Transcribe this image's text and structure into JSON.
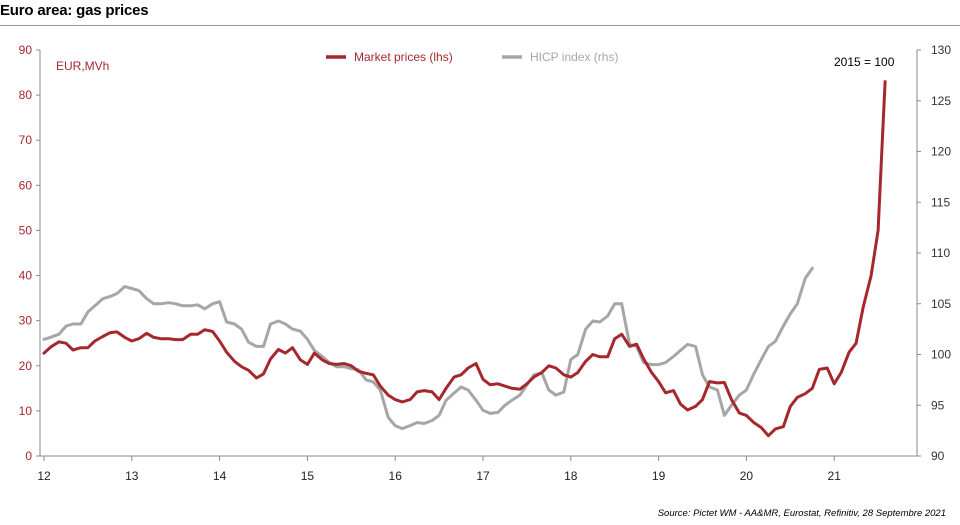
{
  "header": {
    "title": "Euro area: gas prices"
  },
  "footer": {
    "source": "Source: Pictet WM - AA&MR, Eurostat, Refinitiv, 28 Septembre 2021"
  },
  "colors": {
    "market": "#a5282e",
    "hicp": "#a6a6a6",
    "left_axis": "#a5282e",
    "right_axis": "#333333"
  },
  "chart_data": {
    "type": "line",
    "title": "Euro area: gas prices",
    "ylabel_left": "EUR,MVh",
    "annotation": "2015 = 100",
    "legend_position": "top-center",
    "grid": false,
    "xlim": [
      12,
      22
    ],
    "x_ticks": [
      12,
      13,
      14,
      15,
      16,
      17,
      18,
      19,
      20,
      21
    ],
    "ylim_left": [
      0,
      90
    ],
    "ylim_right": [
      90,
      130
    ],
    "y_ticks_left": [
      0,
      10,
      20,
      30,
      40,
      50,
      60,
      70,
      80,
      90
    ],
    "y_ticks_right": [
      90,
      95,
      100,
      105,
      110,
      115,
      120,
      125,
      130
    ],
    "series": [
      {
        "name": "Market prices (lhs)",
        "axis": "left",
        "points": [
          [
            12.0,
            22.8
          ],
          [
            12.08,
            24.2
          ],
          [
            12.17,
            25.3
          ],
          [
            12.25,
            25.0
          ],
          [
            12.33,
            23.5
          ],
          [
            12.42,
            24.0
          ],
          [
            12.5,
            24.0
          ],
          [
            12.58,
            25.5
          ],
          [
            12.67,
            26.5
          ],
          [
            12.75,
            27.3
          ],
          [
            12.83,
            27.5
          ],
          [
            12.92,
            26.3
          ],
          [
            13.0,
            25.5
          ],
          [
            13.08,
            26.0
          ],
          [
            13.17,
            27.2
          ],
          [
            13.25,
            26.3
          ],
          [
            13.33,
            26.0
          ],
          [
            13.42,
            26.0
          ],
          [
            13.5,
            25.8
          ],
          [
            13.58,
            25.8
          ],
          [
            13.67,
            27.0
          ],
          [
            13.75,
            27.0
          ],
          [
            13.83,
            28.0
          ],
          [
            13.92,
            27.6
          ],
          [
            14.0,
            25.5
          ],
          [
            14.08,
            23.0
          ],
          [
            14.17,
            21.0
          ],
          [
            14.25,
            19.8
          ],
          [
            14.33,
            19.0
          ],
          [
            14.42,
            17.3
          ],
          [
            14.5,
            18.2
          ],
          [
            14.58,
            21.5
          ],
          [
            14.67,
            23.6
          ],
          [
            14.75,
            22.8
          ],
          [
            14.83,
            24.0
          ],
          [
            14.92,
            21.3
          ],
          [
            15.0,
            20.3
          ],
          [
            15.08,
            22.8
          ],
          [
            15.17,
            21.3
          ],
          [
            15.25,
            20.5
          ],
          [
            15.33,
            20.3
          ],
          [
            15.42,
            20.5
          ],
          [
            15.5,
            20.0
          ],
          [
            15.58,
            18.8
          ],
          [
            15.67,
            18.3
          ],
          [
            15.75,
            18.0
          ],
          [
            15.83,
            15.5
          ],
          [
            15.92,
            13.5
          ],
          [
            16.0,
            12.5
          ],
          [
            16.08,
            12.0
          ],
          [
            16.17,
            12.5
          ],
          [
            16.25,
            14.2
          ],
          [
            16.33,
            14.5
          ],
          [
            16.42,
            14.2
          ],
          [
            16.5,
            12.5
          ],
          [
            16.58,
            15.0
          ],
          [
            16.67,
            17.5
          ],
          [
            16.75,
            18.0
          ],
          [
            16.83,
            19.5
          ],
          [
            16.92,
            20.5
          ],
          [
            17.0,
            17.0
          ],
          [
            17.08,
            15.8
          ],
          [
            17.17,
            16.0
          ],
          [
            17.25,
            15.5
          ],
          [
            17.33,
            15.0
          ],
          [
            17.42,
            14.8
          ],
          [
            17.5,
            16.0
          ],
          [
            17.58,
            17.5
          ],
          [
            17.67,
            18.5
          ],
          [
            17.75,
            20.0
          ],
          [
            17.83,
            19.5
          ],
          [
            17.92,
            18.0
          ],
          [
            18.0,
            17.5
          ],
          [
            18.08,
            18.5
          ],
          [
            18.17,
            21.0
          ],
          [
            18.25,
            22.5
          ],
          [
            18.33,
            22.0
          ],
          [
            18.42,
            22.0
          ],
          [
            18.5,
            26.0
          ],
          [
            18.58,
            27.0
          ],
          [
            18.67,
            24.3
          ],
          [
            18.75,
            24.8
          ],
          [
            18.83,
            21.5
          ],
          [
            18.92,
            18.5
          ],
          [
            19.0,
            16.5
          ],
          [
            19.08,
            14.0
          ],
          [
            19.17,
            14.5
          ],
          [
            19.25,
            11.5
          ],
          [
            19.33,
            10.2
          ],
          [
            19.42,
            11.0
          ],
          [
            19.5,
            12.5
          ],
          [
            19.58,
            16.5
          ],
          [
            19.67,
            16.2
          ],
          [
            19.75,
            16.3
          ],
          [
            19.83,
            12.5
          ],
          [
            19.92,
            9.5
          ],
          [
            20.0,
            9.0
          ],
          [
            20.08,
            7.5
          ],
          [
            20.17,
            6.3
          ],
          [
            20.25,
            4.5
          ],
          [
            20.33,
            6.0
          ],
          [
            20.42,
            6.5
          ],
          [
            20.5,
            11.0
          ],
          [
            20.58,
            13.0
          ],
          [
            20.67,
            13.8
          ],
          [
            20.75,
            15.0
          ],
          [
            20.83,
            19.2
          ],
          [
            20.92,
            19.5
          ],
          [
            21.0,
            16.0
          ],
          [
            21.08,
            18.5
          ],
          [
            21.17,
            23.0
          ],
          [
            21.25,
            25.0
          ],
          [
            21.33,
            33.0
          ],
          [
            21.42,
            40.0
          ],
          [
            21.5,
            50.0
          ],
          [
            21.58,
            83.0
          ]
        ]
      },
      {
        "name": "HICP index (rhs)",
        "axis": "right",
        "points": [
          [
            12.0,
            101.5
          ],
          [
            12.08,
            101.7
          ],
          [
            12.17,
            102.0
          ],
          [
            12.25,
            102.8
          ],
          [
            12.33,
            103.0
          ],
          [
            12.42,
            103.0
          ],
          [
            12.5,
            104.2
          ],
          [
            12.58,
            104.8
          ],
          [
            12.67,
            105.5
          ],
          [
            12.75,
            105.7
          ],
          [
            12.83,
            106.0
          ],
          [
            12.92,
            106.7
          ],
          [
            13.0,
            106.5
          ],
          [
            13.08,
            106.3
          ],
          [
            13.17,
            105.5
          ],
          [
            13.25,
            105.0
          ],
          [
            13.33,
            105.0
          ],
          [
            13.42,
            105.1
          ],
          [
            13.5,
            105.0
          ],
          [
            13.58,
            104.8
          ],
          [
            13.67,
            104.8
          ],
          [
            13.75,
            104.9
          ],
          [
            13.83,
            104.5
          ],
          [
            13.92,
            105.0
          ],
          [
            14.0,
            105.2
          ],
          [
            14.08,
            103.2
          ],
          [
            14.17,
            103.0
          ],
          [
            14.25,
            102.5
          ],
          [
            14.33,
            101.2
          ],
          [
            14.42,
            100.8
          ],
          [
            14.5,
            100.8
          ],
          [
            14.58,
            103.0
          ],
          [
            14.67,
            103.3
          ],
          [
            14.75,
            103.0
          ],
          [
            14.83,
            102.5
          ],
          [
            14.92,
            102.3
          ],
          [
            15.0,
            101.5
          ],
          [
            15.08,
            100.4
          ],
          [
            15.17,
            99.8
          ],
          [
            15.25,
            99.2
          ],
          [
            15.33,
            98.8
          ],
          [
            15.42,
            98.8
          ],
          [
            15.5,
            98.6
          ],
          [
            15.58,
            98.5
          ],
          [
            15.67,
            97.5
          ],
          [
            15.75,
            97.3
          ],
          [
            15.83,
            96.5
          ],
          [
            15.92,
            93.8
          ],
          [
            16.0,
            93.0
          ],
          [
            16.08,
            92.7
          ],
          [
            16.17,
            93.0
          ],
          [
            16.25,
            93.3
          ],
          [
            16.33,
            93.2
          ],
          [
            16.42,
            93.5
          ],
          [
            16.5,
            94.0
          ],
          [
            16.58,
            95.5
          ],
          [
            16.67,
            96.2
          ],
          [
            16.75,
            96.8
          ],
          [
            16.83,
            96.5
          ],
          [
            16.92,
            95.5
          ],
          [
            17.0,
            94.5
          ],
          [
            17.08,
            94.2
          ],
          [
            17.17,
            94.3
          ],
          [
            17.25,
            95.0
          ],
          [
            17.33,
            95.5
          ],
          [
            17.42,
            96.0
          ],
          [
            17.5,
            97.0
          ],
          [
            17.58,
            98.0
          ],
          [
            17.67,
            98.2
          ],
          [
            17.75,
            96.5
          ],
          [
            17.83,
            96.0
          ],
          [
            17.92,
            96.3
          ],
          [
            18.0,
            99.5
          ],
          [
            18.08,
            100.0
          ],
          [
            18.17,
            102.5
          ],
          [
            18.25,
            103.3
          ],
          [
            18.33,
            103.2
          ],
          [
            18.42,
            103.8
          ],
          [
            18.5,
            105.0
          ],
          [
            18.58,
            105.0
          ],
          [
            18.67,
            101.0
          ],
          [
            18.75,
            100.8
          ],
          [
            18.83,
            99.2
          ],
          [
            18.92,
            99.0
          ],
          [
            19.0,
            99.0
          ],
          [
            19.08,
            99.2
          ],
          [
            19.17,
            99.8
          ],
          [
            19.25,
            100.4
          ],
          [
            19.33,
            101.0
          ],
          [
            19.42,
            100.8
          ],
          [
            19.5,
            98.0
          ],
          [
            19.58,
            96.8
          ],
          [
            19.67,
            96.5
          ],
          [
            19.75,
            94.0
          ],
          [
            19.83,
            95.0
          ],
          [
            19.92,
            96.0
          ],
          [
            20.0,
            96.5
          ],
          [
            20.08,
            98.0
          ],
          [
            20.17,
            99.5
          ],
          [
            20.25,
            100.8
          ],
          [
            20.33,
            101.3
          ],
          [
            20.42,
            102.8
          ],
          [
            20.5,
            104.0
          ],
          [
            20.58,
            105.0
          ],
          [
            20.67,
            107.5
          ],
          [
            20.75,
            108.5
          ]
        ]
      }
    ]
  }
}
